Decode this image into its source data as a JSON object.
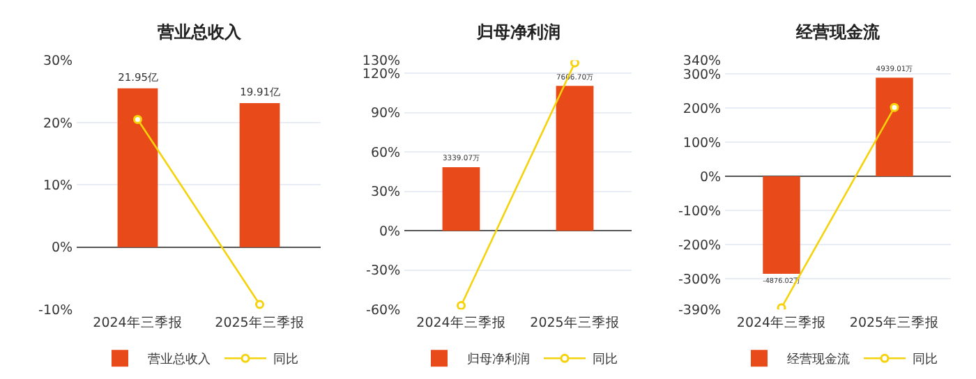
{
  "chart_data": [
    {
      "type": "bar",
      "title": "营业总收入",
      "categories": [
        "2024年三季报",
        "2025年三季报"
      ],
      "series": [
        {
          "name": "营业总收入",
          "color": "#e84a19",
          "axis": "y2",
          "values": [
            21.95,
            19.91
          ],
          "value_labels": [
            "21.95亿",
            "19.91亿"
          ]
        },
        {
          "type": "line",
          "name": "同比",
          "color": "#f5d20a",
          "values": [
            20.5,
            -9.2
          ],
          "marker": "circle"
        }
      ],
      "ylim": [
        -10,
        30
      ],
      "yticks": [
        {
          "value": -10,
          "label": "-10%"
        },
        {
          "value": 0,
          "label": "0%"
        },
        {
          "value": 10,
          "label": "10%"
        },
        {
          "value": 20,
          "label": "20%"
        },
        {
          "value": 30,
          "label": "30%"
        }
      ],
      "grid": "y",
      "legend": "bottom"
    },
    {
      "type": "bar",
      "title": "归母净利润",
      "categories": [
        "2024年三季报",
        "2025年三季报"
      ],
      "series": [
        {
          "name": "归母净利润",
          "color": "#e84a19",
          "axis": "y2",
          "values": [
            3339.07,
            7606.7
          ],
          "value_labels": [
            "3339.07万",
            "7606.70万"
          ]
        },
        {
          "type": "line",
          "name": "同比",
          "color": "#f5d20a",
          "values": [
            -57,
            128
          ],
          "marker": "circle"
        }
      ],
      "ylim": [
        -60,
        130
      ],
      "yticks": [
        {
          "value": -60,
          "label": "-60%"
        },
        {
          "value": -30,
          "label": "-30%"
        },
        {
          "value": 0,
          "label": "0%"
        },
        {
          "value": 30,
          "label": "30%"
        },
        {
          "value": 60,
          "label": "60%"
        },
        {
          "value": 90,
          "label": "90%"
        },
        {
          "value": 120,
          "label": "120%"
        },
        {
          "value": 130,
          "label": "130%"
        }
      ],
      "grid": "y",
      "legend": "bottom"
    },
    {
      "type": "bar",
      "title": "经营现金流",
      "categories": [
        "2024年三季报",
        "2025年三季报"
      ],
      "series": [
        {
          "name": "经营现金流",
          "color": "#e84a19",
          "axis": "y2",
          "values": [
            -4876.02,
            4939.01
          ],
          "value_labels": [
            "-4876.02万",
            "4939.01万"
          ]
        },
        {
          "type": "line",
          "name": "同比",
          "color": "#f5d20a",
          "values": [
            -385,
            202
          ],
          "marker": "circle"
        }
      ],
      "ylim": [
        -390,
        340
      ],
      "yticks": [
        {
          "value": -390,
          "label": "-390%"
        },
        {
          "value": -300,
          "label": "-300%"
        },
        {
          "value": -200,
          "label": "-200%"
        },
        {
          "value": -100,
          "label": "-100%"
        },
        {
          "value": 0,
          "label": "0%"
        },
        {
          "value": 100,
          "label": "100%"
        },
        {
          "value": 200,
          "label": "200%"
        },
        {
          "value": 300,
          "label": "300%"
        },
        {
          "value": 340,
          "label": "340%"
        }
      ],
      "grid": "y",
      "legend": "bottom"
    }
  ]
}
